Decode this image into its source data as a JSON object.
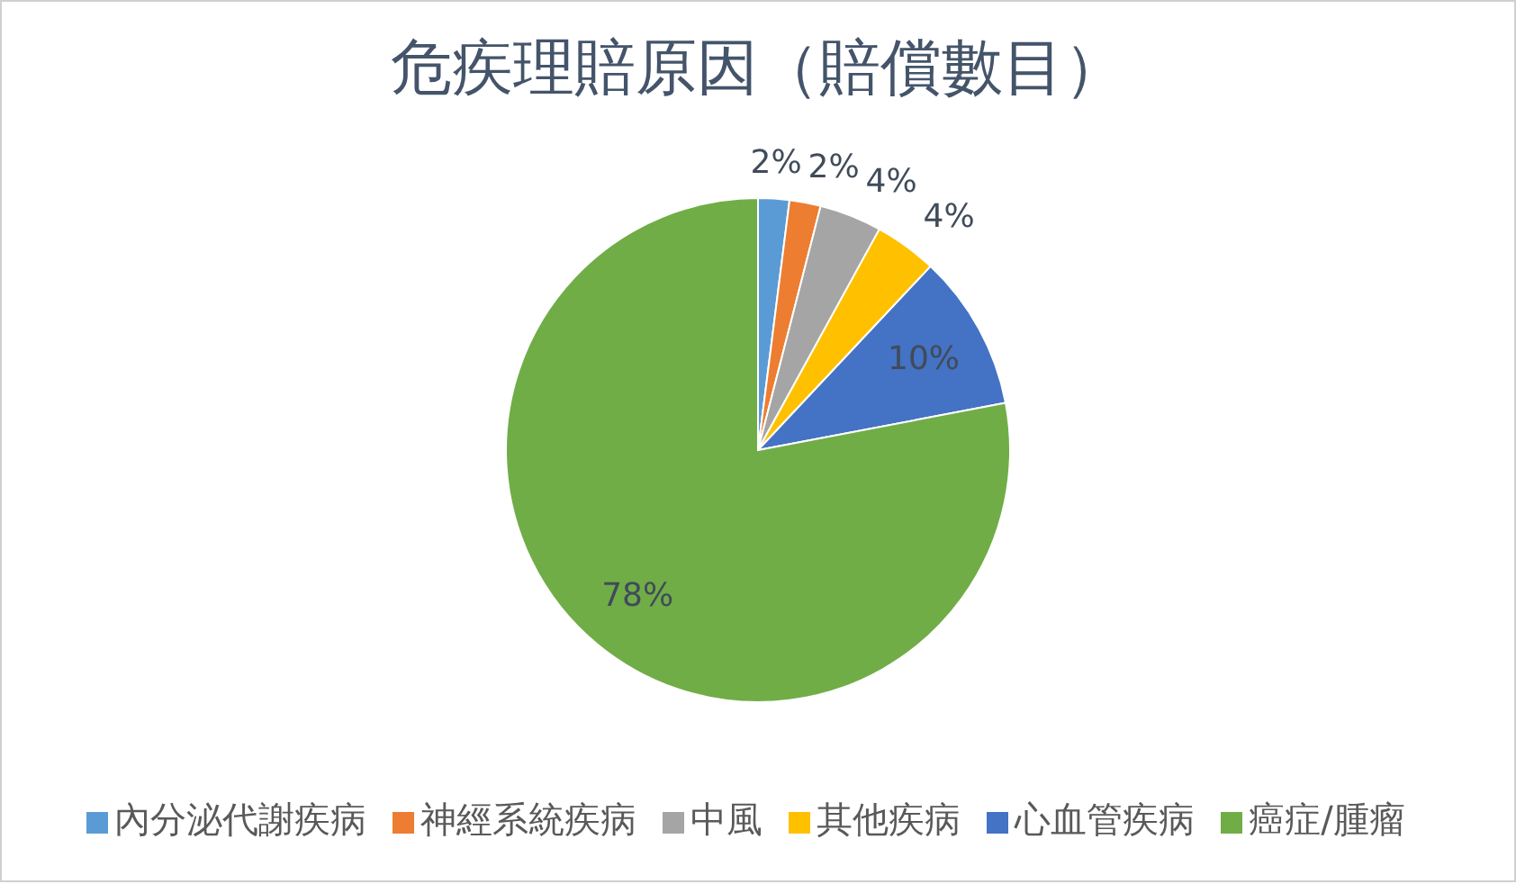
{
  "chart_data": {
    "type": "pie",
    "title": "危疾理賠原因（賠償數目）",
    "categories": [
      "內分泌代謝疾病",
      "神經系統疾病",
      "中風",
      "其他疾病",
      "心血管疾病",
      "癌症/腫瘤"
    ],
    "values": [
      2,
      2,
      4,
      4,
      10,
      78
    ],
    "colors": [
      "#5b9bd5",
      "#ed7d31",
      "#a5a5a5",
      "#ffc000",
      "#4472c4",
      "#70ad47"
    ],
    "value_labels": [
      "2%",
      "2%",
      "4%",
      "4%",
      "10%",
      "78%"
    ],
    "legend": "bottom"
  }
}
